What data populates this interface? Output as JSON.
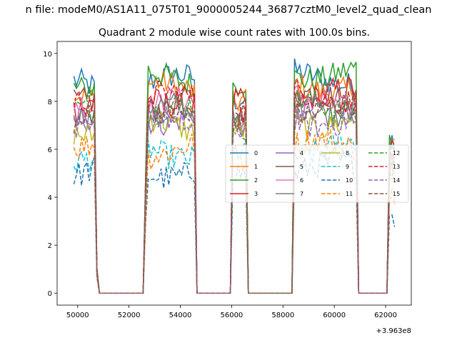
{
  "suptitle": "n file: modeM0/AS1A11_075T01_9000005244_36877cztM0_level2_quad_clean",
  "chart_data": {
    "type": "line",
    "title": "Quadrant 2 module wise count rates with 100.0s bins.",
    "xlabel": "",
    "ylabel": "",
    "x_offset_label": "+3.963e8",
    "xlim": [
      49200,
      63000
    ],
    "ylim": [
      -0.5,
      10.5
    ],
    "xticks": [
      50000,
      52000,
      54000,
      56000,
      58000,
      60000,
      62000
    ],
    "xtick_labels": [
      "50000",
      "52000",
      "54000",
      "56000",
      "58000",
      "60000",
      "62000"
    ],
    "yticks": [
      0,
      2,
      4,
      6,
      8,
      10
    ],
    "ytick_labels": [
      "0",
      "2",
      "4",
      "6",
      "8",
      "10"
    ],
    "grid": false,
    "legend": {
      "placement": "center-right",
      "ncol": 4
    },
    "bin_seconds": 100,
    "segments": [
      {
        "x_start": 49850,
        "x_end": 50750
      },
      {
        "x_start": 52650,
        "x_end": 54550
      },
      {
        "x_start": 56050,
        "x_end": 56550
      },
      {
        "x_start": 58450,
        "x_end": 60850
      },
      {
        "x_start": 62150,
        "x_end": 62350
      }
    ],
    "gap_value": 0,
    "series": [
      {
        "name": "0",
        "color": "#1f77b4",
        "dashed": false,
        "level": 8.8
      },
      {
        "name": "1",
        "color": "#ff7f0e",
        "dashed": false,
        "level": 8.5
      },
      {
        "name": "2",
        "color": "#2ca02c",
        "dashed": false,
        "level": 9.0
      },
      {
        "name": "3",
        "color": "#d62728",
        "dashed": false,
        "level": 8.1
      },
      {
        "name": "4",
        "color": "#9467bd",
        "dashed": false,
        "level": 7.4
      },
      {
        "name": "5",
        "color": "#8c564b",
        "dashed": false,
        "level": 7.9
      },
      {
        "name": "6",
        "color": "#e377c2",
        "dashed": false,
        "level": 7.8
      },
      {
        "name": "7",
        "color": "#7f7f7f",
        "dashed": false,
        "level": 7.6
      },
      {
        "name": "8",
        "color": "#bcbd22",
        "dashed": false,
        "level": 7.0
      },
      {
        "name": "9",
        "color": "#17becf",
        "dashed": true,
        "level": 5.9
      },
      {
        "name": "10",
        "color": "#1f77b4",
        "dashed": true,
        "level": 5.1
      },
      {
        "name": "11",
        "color": "#ff7f0e",
        "dashed": true,
        "level": 6.0
      },
      {
        "name": "12",
        "color": "#2ca02c",
        "dashed": true,
        "level": 7.6
      },
      {
        "name": "13",
        "color": "#d62728",
        "dashed": true,
        "level": 8.1
      },
      {
        "name": "14",
        "color": "#9467bd",
        "dashed": true,
        "level": 7.1
      },
      {
        "name": "15",
        "color": "#8c564b",
        "dashed": true,
        "level": 7.6
      }
    ]
  }
}
